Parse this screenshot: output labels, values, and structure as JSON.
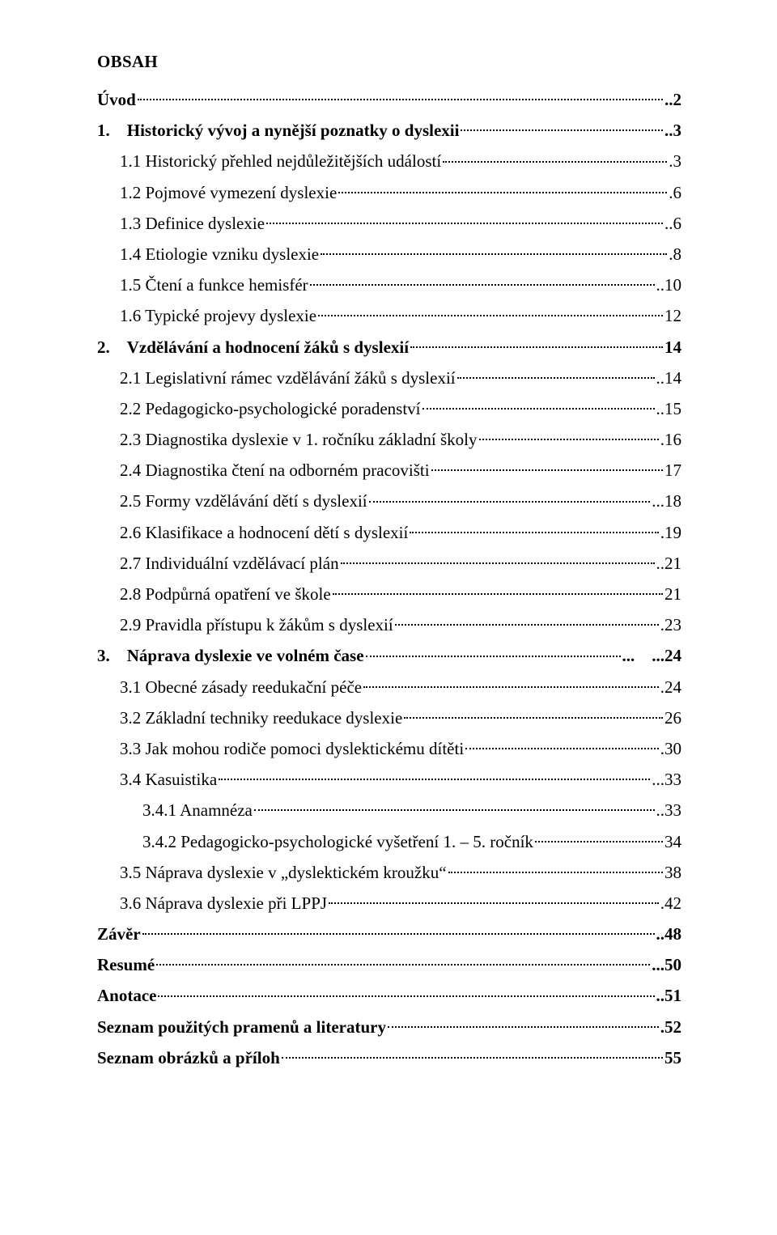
{
  "title": "OBSAH",
  "entries": [
    {
      "label": "Úvod",
      "page": "..2",
      "bold": true,
      "indent": 0
    },
    {
      "label": "1. Historický vývoj a nynější poznatky o dyslexii",
      "page": "..3",
      "bold": true,
      "indent": 0
    },
    {
      "label": "1.1 Historický přehled nejdůležitějších událostí",
      "page": ".3",
      "bold": false,
      "indent": 1
    },
    {
      "label": "1.2 Pojmové vymezení dyslexie",
      "page": ".6",
      "bold": false,
      "indent": 1
    },
    {
      "label": "1.3 Definice dyslexie",
      "page": "..6",
      "bold": false,
      "indent": 1
    },
    {
      "label": "1.4 Etiologie vzniku dyslexie",
      "page": ".8",
      "bold": false,
      "indent": 1
    },
    {
      "label": "1.5 Čtení a funkce hemisfér",
      "page": "..10",
      "bold": false,
      "indent": 1
    },
    {
      "label": "1.6 Typické projevy dyslexie",
      "page": "12",
      "bold": false,
      "indent": 1
    },
    {
      "label": "2. Vzdělávání a hodnocení žáků s dyslexií",
      "page": "14",
      "bold": true,
      "indent": 0
    },
    {
      "label": "2.1 Legislativní rámec vzdělávání žáků s dyslexií",
      "page": "..14",
      "bold": false,
      "indent": 1
    },
    {
      "label": "2.2 Pedagogicko-psychologické poradenství",
      "page": "..15",
      "bold": false,
      "indent": 1
    },
    {
      "label": "2.3 Diagnostika dyslexie v 1. ročníku základní školy",
      "page": ".16",
      "bold": false,
      "indent": 1
    },
    {
      "label": "2.4 Diagnostika čtení na odborném pracovišti",
      "page": "17",
      "bold": false,
      "indent": 1
    },
    {
      "label": "2.5 Formy vzdělávání dětí s dyslexií",
      "page": "...18",
      "bold": false,
      "indent": 1
    },
    {
      "label": "2.6 Klasifikace a hodnocení dětí s dyslexií",
      "page": ".19",
      "bold": false,
      "indent": 1
    },
    {
      "label": "2.7 Individuální vzdělávací plán",
      "page": "..21",
      "bold": false,
      "indent": 1
    },
    {
      "label": "2.8 Podpůrná opatření ve škole",
      "page": "21",
      "bold": false,
      "indent": 1
    },
    {
      "label": "2.9 Pravidla přístupu k žákům s dyslexií",
      "page": ".23",
      "bold": false,
      "indent": 1
    },
    {
      "label": "3. Náprava dyslexie ve volném čase",
      "page": "... ...24",
      "bold": true,
      "indent": 0
    },
    {
      "label": "3.1 Obecné zásady reedukační péče",
      "page": ".24",
      "bold": false,
      "indent": 1
    },
    {
      "label": "3.2 Základní techniky reedukace dyslexie",
      "page": "26",
      "bold": false,
      "indent": 1
    },
    {
      "label": "3.3 Jak mohou rodiče pomoci dyslektickému dítěti",
      "page": ".30",
      "bold": false,
      "indent": 1
    },
    {
      "label": "3.4 Kasuistika",
      "page": "...33",
      "bold": false,
      "indent": 1
    },
    {
      "label": "3.4.1 Anamnéza",
      "page": "..33",
      "bold": false,
      "indent": 2
    },
    {
      "label": "3.4.2 Pedagogicko-psychologické vyšetření 1. – 5. ročník",
      "page": "34",
      "bold": false,
      "indent": 2
    },
    {
      "label": "3.5 Náprava dyslexie v „dyslektickém kroužku“",
      "page": "38",
      "bold": false,
      "indent": 1
    },
    {
      "label": "3.6 Náprava dyslexie při LPPJ",
      "page": ".42",
      "bold": false,
      "indent": 1
    },
    {
      "label": "Závěr",
      "page": "..48",
      "bold": true,
      "indent": 0
    },
    {
      "label": "Resumé",
      "page": "...50",
      "bold": true,
      "indent": 0
    },
    {
      "label": "Anotace",
      "page": "..51",
      "bold": true,
      "indent": 0
    },
    {
      "label": "Seznam použitých pramenů a literatury",
      "page": ".52",
      "bold": true,
      "indent": 0
    },
    {
      "label": "Seznam obrázků a příloh",
      "page": "55",
      "bold": true,
      "indent": 0
    }
  ]
}
